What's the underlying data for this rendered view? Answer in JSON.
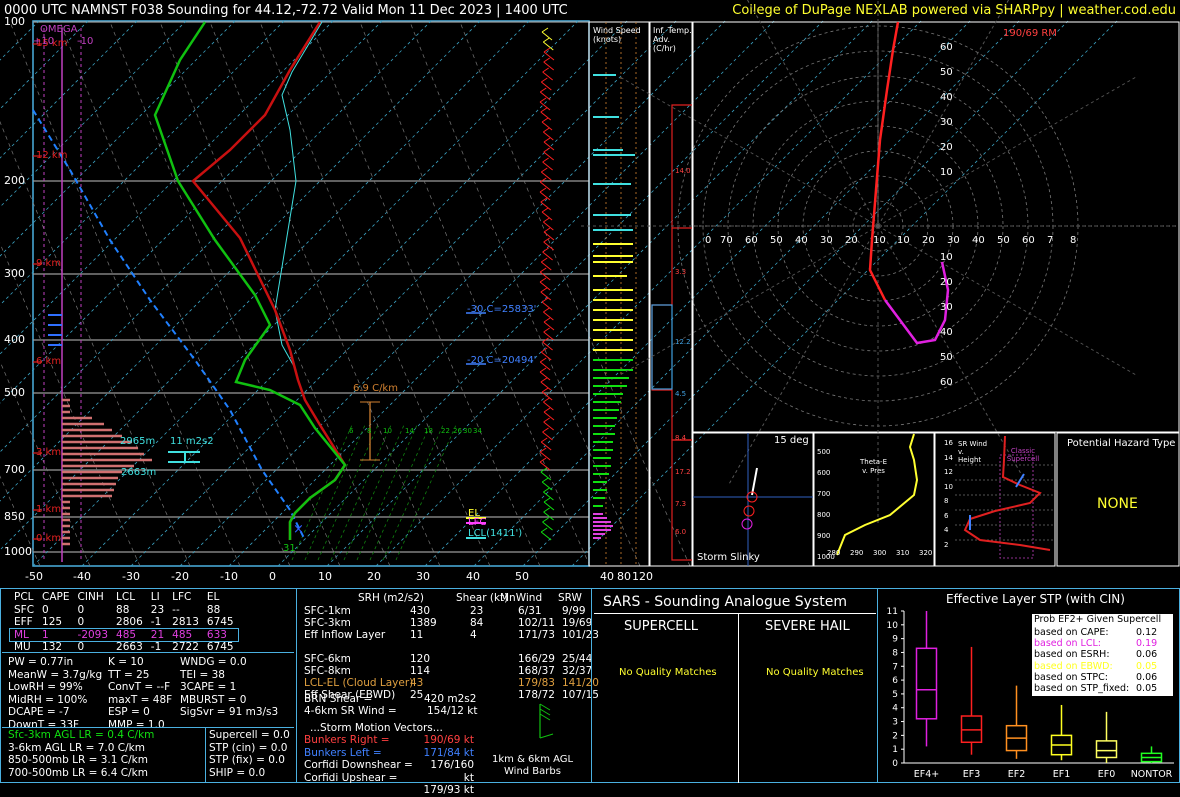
{
  "header": {
    "title": "0000 UTC NAMNST F038 Sounding for 44.12,-72.72 Valid  Mon 11 Dec 2023 | 1400 UTC",
    "credit": "College of DuPage NEXLAB powered via SHARPpy | weather.cod.edu"
  },
  "colors": {
    "temperature": "#d01010",
    "dewpoint": "#10c010",
    "parcel": "#2080ff",
    "frame": "#4ab0e0",
    "omega": "#c040c0",
    "highlight_yellow": "#ffff30",
    "cyan": "#40e0e0"
  },
  "skewt": {
    "pressure_labels": [
      "100",
      "200",
      "300",
      "400",
      "500",
      "700",
      "850",
      "1000"
    ],
    "temp_labels": [
      "-50",
      "-40",
      "-30",
      "-20",
      "-10",
      "0",
      "10",
      "20",
      "30",
      "40",
      "50"
    ],
    "height_labels": [
      "15 km",
      "12 km",
      "9 km",
      "6 km",
      "3 km",
      "1 km",
      "0 km"
    ],
    "omega_label": "OMEGA",
    "omega_left": "+10",
    "omega_right": "-10",
    "lapse_label": "6.9 C/km",
    "isotherm_labels": [
      {
        "text": "-30 C=25833'"
      },
      {
        "text": "-20 C=20494'"
      }
    ],
    "mixing_ratio_labels": [
      "6",
      "8",
      "10",
      "14",
      "18",
      "22",
      "26",
      "30",
      "34"
    ],
    "srh_height_top": "2965m",
    "srh_height_bot": "2663m",
    "srh_value": "11 m2s2",
    "surface_temp": "31",
    "el_label": "EL",
    "lfc_label": "LFC",
    "lcl_label": "LCL(1411')"
  },
  "wind_speed_panel": {
    "title": "Wind Speed (knots)",
    "axis": [
      "40",
      "80",
      "120"
    ]
  },
  "temp_adv_panel": {
    "title": "Inf. Temp. Adv. (C/hr)",
    "values": [
      "14.0",
      "3.3",
      "12.2",
      "4.5",
      "8.4",
      "17.2",
      "7.3",
      "6.0"
    ]
  },
  "hodograph": {
    "storm_motion_label": "190/69 RM",
    "ring_labels": [
      "60",
      "50",
      "40",
      "30",
      "20",
      "10"
    ],
    "x_labels": [
      "0",
      "70",
      "60",
      "50",
      "40",
      "30",
      "20",
      "10",
      "10",
      "20",
      "30",
      "40",
      "50",
      "60",
      "7",
      "8"
    ],
    "y_labels": [
      "10",
      "20",
      "30",
      "40",
      "50",
      "60"
    ]
  },
  "storm_slinky": {
    "title": "15 deg",
    "label": "Storm Slinky"
  },
  "theta_e": {
    "title": "Theta-E v. Pres",
    "y_labels": [
      "500",
      "600",
      "700",
      "800",
      "900",
      "1000"
    ],
    "x_labels": [
      "280",
      "290",
      "300",
      "310",
      "320"
    ]
  },
  "sr_wind": {
    "title": "SR Wind v. Height",
    "classic_label": "Classic Supercell",
    "y_labels": [
      "16",
      "14",
      "12",
      "10",
      "8",
      "6",
      "4",
      "2"
    ]
  },
  "hazard": {
    "title": "Potential Hazard Type",
    "value": "NONE"
  },
  "parcel_table": {
    "headers": [
      "PCL",
      "CAPE",
      "CINH",
      "LCL",
      "LI",
      "LFC",
      "EL"
    ],
    "rows": [
      [
        "SFC",
        "0",
        "0",
        "88",
        "23",
        "--",
        "88"
      ],
      [
        "EFF",
        "125",
        "0",
        "2806",
        "-1",
        "2813",
        "6745"
      ],
      [
        "ML",
        "1",
        "-2093",
        "485",
        "21",
        "485",
        "633"
      ],
      [
        "MU",
        "132",
        "0",
        "2663",
        "-1",
        "2722",
        "6745"
      ]
    ]
  },
  "indices": {
    "col1": [
      "PW = 0.77in",
      "MeanW = 3.7g/kg",
      "LowRH = 99%",
      "MidRH = 100%",
      "DCAPE = -7",
      "DownT = 33F"
    ],
    "col2": [
      "K = 10",
      "TT = 25",
      "ConvT = --F",
      "maxT = 48F",
      "ESP = 0",
      "MMP = 1.0"
    ],
    "col3": [
      "WNDG = 0.0",
      "TEI = 38",
      "3CAPE = 1",
      "MBURST = 0",
      "",
      "SigSvr = 91 m3/s3"
    ]
  },
  "lapse_rates": [
    {
      "text": "Sfc-3km AGL LR = 0.4 C/km",
      "color": "#10e010"
    },
    {
      "text": "3-6km AGL LR = 7.0 C/km",
      "color": "#ffffff"
    },
    {
      "text": "850-500mb LR = 3.1 C/km",
      "color": "#ffffff"
    },
    {
      "text": "700-500mb LR = 6.4 C/km",
      "color": "#ffffff"
    }
  ],
  "composite": [
    "Supercell = 0.0",
    "STP (cin) = 0.0",
    "STP (fix) = 0.0",
    "SHIP = 0.0"
  ],
  "kinematics": {
    "headers": [
      "SRH (m2/s2)",
      "Shear (kt)",
      "MnWind",
      "SRW"
    ],
    "rows": [
      {
        "label": "SFC-1km",
        "v": [
          "430",
          "23",
          "6/31",
          "9/99"
        ],
        "color": "#ffffff"
      },
      {
        "label": "SFC-3km",
        "v": [
          "1389",
          "84",
          "102/11",
          "19/69"
        ],
        "color": "#ffffff"
      },
      {
        "label": "Eff Inflow Layer",
        "v": [
          "11",
          "4",
          "171/73",
          "101/23"
        ],
        "color": "#ffffff"
      },
      {
        "label": "",
        "v": [
          "",
          "",
          "",
          ""
        ],
        "color": "#ffffff"
      },
      {
        "label": "SFC-6km",
        "v": [
          "120",
          "",
          "166/29",
          "25/44"
        ],
        "color": "#ffffff"
      },
      {
        "label": "SFC-8km",
        "v": [
          "114",
          "",
          "168/37",
          "32/37"
        ],
        "color": "#ffffff"
      },
      {
        "label": "LCL-EL (Cloud Layer)",
        "v": [
          "43",
          "",
          "179/83",
          "141/20"
        ],
        "color": "#e0a040"
      },
      {
        "label": "Eff Shear (EBWD)",
        "v": [
          "25",
          "",
          "178/72",
          "107/15"
        ],
        "color": "#ffffff"
      }
    ],
    "brn_shear": "BRN Shear =",
    "brn_shear_val": "420 m2s2",
    "sr_wind": "4-6km SR Wind =",
    "sr_wind_val": "154/12 kt",
    "storm_motion_title": "...Storm Motion Vectors...",
    "motions": [
      {
        "label": "Bunkers Right =",
        "value": "190/69 kt",
        "color": "#ff4040"
      },
      {
        "label": "Bunkers Left =",
        "value": "171/84 kt",
        "color": "#4080ff"
      },
      {
        "label": "Corfidi Downshear =",
        "value": "176/160 kt",
        "color": "#ffffff"
      },
      {
        "label": "Corfidi Upshear =",
        "value": "179/93 kt",
        "color": "#ffffff"
      }
    ],
    "barb_label1": "1km & 6km AGL",
    "barb_label2": "Wind Barbs"
  },
  "sars": {
    "title": "SARS - Sounding Analogue System",
    "supercell": "SUPERCELL",
    "hail": "SEVERE HAIL",
    "supercell_match": "No Quality Matches",
    "hail_match": "No Quality Matches"
  },
  "chart_data": {
    "type": "bar",
    "title": "Effective Layer STP (with CIN)",
    "categories": [
      "EF4+",
      "EF3",
      "EF2",
      "EF1",
      "EF0",
      "NONTOR"
    ],
    "ylim": [
      0,
      11
    ],
    "yticks": [
      "0",
      "1",
      "2",
      "3",
      "4",
      "5",
      "6",
      "7",
      "8",
      "9",
      "10",
      "11"
    ],
    "boxes": [
      {
        "name": "EF4+",
        "low": 1.2,
        "q1": 3.2,
        "med": 5.3,
        "q3": 8.3,
        "high": 11.0,
        "color": "#e020e0"
      },
      {
        "name": "EF3",
        "low": 0.6,
        "q1": 1.5,
        "med": 2.4,
        "q3": 3.4,
        "high": 8.4,
        "color": "#ff2020"
      },
      {
        "name": "EF2",
        "low": 0.3,
        "q1": 0.9,
        "med": 1.8,
        "q3": 2.7,
        "high": 5.6,
        "color": "#ff9020"
      },
      {
        "name": "EF1",
        "low": 0.2,
        "q1": 0.6,
        "med": 1.3,
        "q3": 2.0,
        "high": 4.2,
        "color": "#ffff20"
      },
      {
        "name": "EF0",
        "low": 0.0,
        "q1": 0.4,
        "med": 0.9,
        "q3": 1.6,
        "high": 3.7,
        "color": "#ffff60"
      },
      {
        "name": "NONTOR",
        "low": 0.0,
        "q1": 0.1,
        "med": 0.4,
        "q3": 0.7,
        "high": 1.2,
        "color": "#20ff20"
      }
    ],
    "legend_title": "Prob EF2+ Given Supercell",
    "legend": [
      {
        "label": "based on CAPE:",
        "value": "0.12",
        "color": "#ffffff"
      },
      {
        "label": "based on LCL:",
        "value": "0.19",
        "color": "#e020e0"
      },
      {
        "label": "based on ESRH:",
        "value": "0.06",
        "color": "#ffffff"
      },
      {
        "label": "based on EBWD:",
        "value": "0.05",
        "color": "#ffff20"
      },
      {
        "label": "based on STPC:",
        "value": "0.06",
        "color": "#ffffff"
      },
      {
        "label": "based on STP_fixed:",
        "value": "0.05",
        "color": "#ffffff"
      }
    ]
  }
}
